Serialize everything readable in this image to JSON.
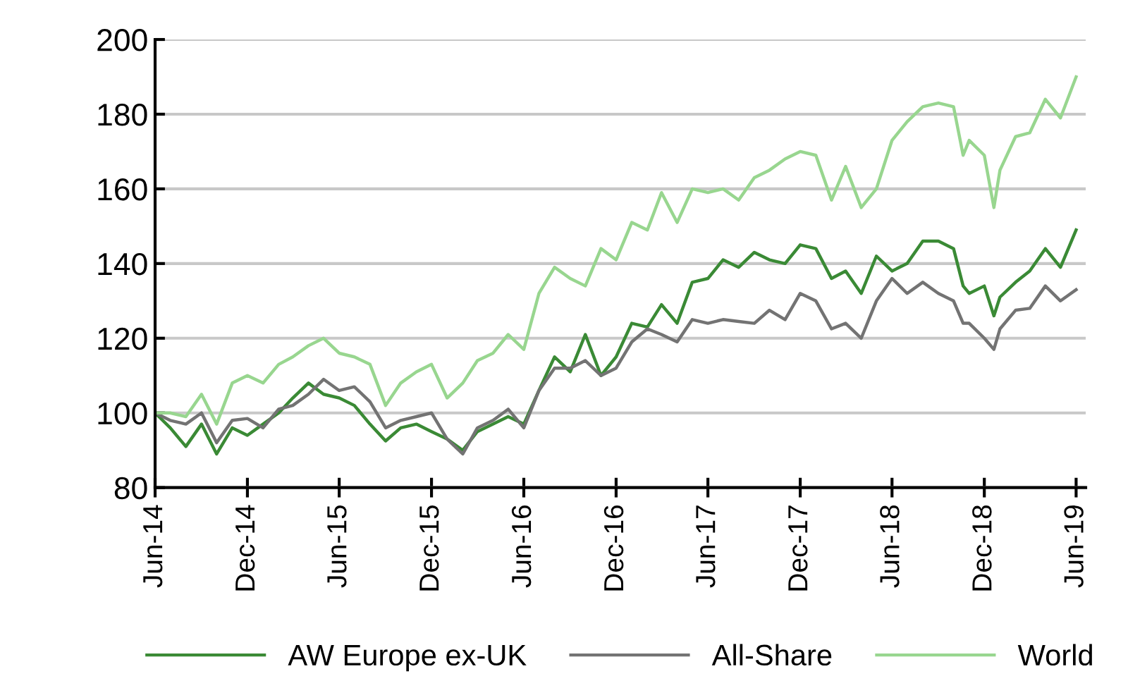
{
  "chart_data": {
    "type": "line",
    "x": [
      "2014-06-01",
      "2014-07-01",
      "2014-08-01",
      "2014-09-01",
      "2014-10-01",
      "2014-11-01",
      "2014-12-01",
      "2015-01-01",
      "2015-02-01",
      "2015-03-01",
      "2015-04-01",
      "2015-05-01",
      "2015-06-01",
      "2015-07-01",
      "2015-08-01",
      "2015-09-01",
      "2015-10-01",
      "2015-11-01",
      "2015-12-01",
      "2016-01-01",
      "2016-02-01",
      "2016-03-01",
      "2016-04-01",
      "2016-05-01",
      "2016-06-01",
      "2016-07-01",
      "2016-08-01",
      "2016-09-01",
      "2016-10-01",
      "2016-11-01",
      "2016-12-01",
      "2017-01-01",
      "2017-02-01",
      "2017-03-01",
      "2017-04-01",
      "2017-05-01",
      "2017-06-01",
      "2017-07-01",
      "2017-08-01",
      "2017-09-01",
      "2017-10-01",
      "2017-11-01",
      "2017-12-01",
      "2018-01-01",
      "2018-02-01",
      "2018-03-01",
      "2018-04-01",
      "2018-05-01",
      "2018-06-01",
      "2018-07-01",
      "2018-08-01",
      "2018-09-01",
      "2018-10-01",
      "2018-10-20",
      "2018-11-01",
      "2018-12-01",
      "2018-12-20",
      "2019-01-01",
      "2019-02-01",
      "2019-03-01",
      "2019-04-01",
      "2019-05-01",
      "2019-06-01"
    ],
    "series": [
      {
        "name": "AW Europe ex-UK",
        "color": "#3a8a35",
        "values": [
          100,
          96,
          91,
          97,
          89,
          96,
          94,
          97,
          100,
          104,
          108,
          105,
          104,
          102,
          97,
          92.5,
          96,
          97,
          95,
          93,
          90,
          95,
          97,
          99,
          97,
          106,
          115,
          111,
          121,
          110,
          115,
          124,
          123,
          129,
          124,
          135,
          136,
          141,
          139,
          143,
          141,
          140,
          145,
          144,
          136,
          138,
          132,
          142,
          138,
          140,
          146,
          146,
          144,
          134,
          132,
          134,
          126,
          131,
          135,
          138,
          144,
          139,
          149
        ]
      },
      {
        "name": "All-Share",
        "color": "#737373",
        "values": [
          100,
          98,
          97,
          100,
          92,
          98,
          98.5,
          96,
          101,
          102,
          105,
          109,
          106,
          107,
          103,
          96,
          98,
          99,
          100,
          93,
          89,
          96,
          98,
          101,
          96,
          106,
          112,
          112,
          114,
          110,
          112,
          119,
          122.5,
          121,
          119,
          125,
          124,
          125,
          124.5,
          124,
          127.5,
          125,
          132,
          130,
          122.5,
          124,
          120,
          130,
          136,
          132,
          135,
          132,
          130,
          124,
          124,
          120,
          117,
          122.5,
          127.5,
          128,
          134,
          130,
          133
        ]
      },
      {
        "name": "World",
        "color": "#98d68f",
        "values": [
          100,
          100,
          99,
          105,
          97,
          108,
          110,
          108,
          113,
          115,
          118,
          120,
          116,
          115,
          113,
          102,
          108,
          111,
          113,
          104,
          108,
          114,
          116,
          121,
          117,
          132,
          139,
          136,
          134,
          144,
          141,
          151,
          149,
          159,
          151,
          160,
          159,
          160,
          157,
          163,
          165,
          168,
          170,
          169,
          157,
          166,
          155,
          160,
          173,
          178,
          182,
          183,
          182,
          169,
          173,
          169,
          155,
          165,
          174,
          175,
          184,
          179,
          190
        ]
      }
    ],
    "xlim": [
      "2014-06-01",
      "2019-06-20"
    ],
    "xticks": [
      {
        "value": "2014-06-01",
        "label": "Jun-14"
      },
      {
        "value": "2014-12-01",
        "label": "Dec-14"
      },
      {
        "value": "2015-06-01",
        "label": "Jun-15"
      },
      {
        "value": "2015-12-01",
        "label": "Dec-15"
      },
      {
        "value": "2016-06-01",
        "label": "Jun-16"
      },
      {
        "value": "2016-12-01",
        "label": "Dec-16"
      },
      {
        "value": "2017-06-01",
        "label": "Jun-17"
      },
      {
        "value": "2017-12-01",
        "label": "Dec-17"
      },
      {
        "value": "2018-06-01",
        "label": "Jun-18"
      },
      {
        "value": "2018-12-01",
        "label": "Dec-18"
      },
      {
        "value": "2019-06-01",
        "label": "Jun-19"
      }
    ],
    "ylim": [
      80,
      200
    ],
    "yticks": [
      80,
      100,
      120,
      140,
      160,
      180,
      200
    ],
    "grid": "y",
    "legend": "bottom",
    "marker": "none",
    "line_style": "solid"
  }
}
